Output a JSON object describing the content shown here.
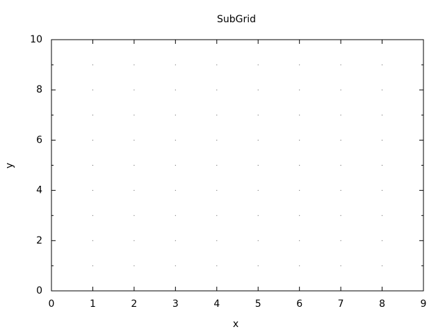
{
  "chart_data": {
    "type": "empty",
    "title": "SubGrid",
    "x_label": "x",
    "y_label": "y",
    "xlim": [
      0,
      9
    ],
    "xticks": [
      0,
      1,
      2,
      3,
      4,
      5,
      6,
      7,
      8,
      9
    ],
    "ylim": [
      0,
      10
    ],
    "yticks": [
      0,
      2,
      4,
      6,
      8,
      10
    ],
    "y_minor_ticks": [
      1,
      3,
      5,
      7,
      9
    ],
    "grid": true
  }
}
